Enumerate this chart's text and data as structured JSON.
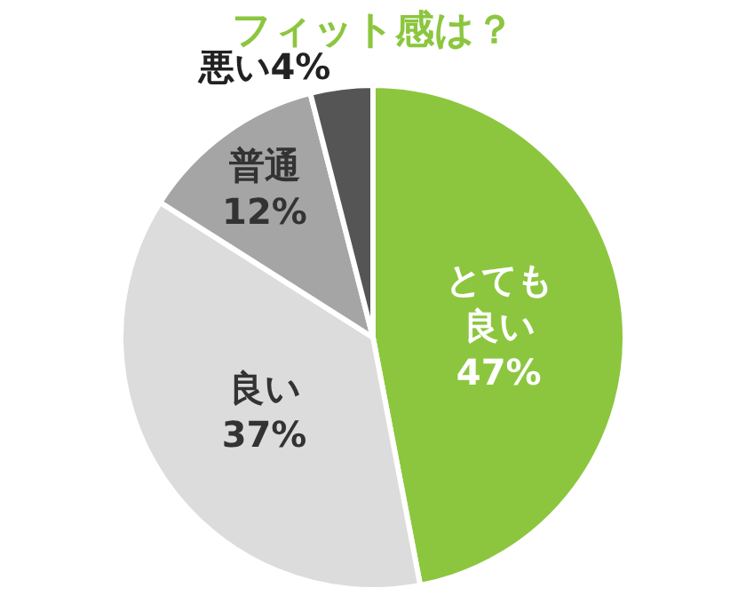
{
  "chart_data": {
    "type": "pie",
    "title": "フィット感は？",
    "categories": [
      "とても良い",
      "良い",
      "普通",
      "悪い"
    ],
    "values": [
      47,
      37,
      12,
      4
    ],
    "value_labels": [
      "47%",
      "37%",
      "12%",
      "4%"
    ],
    "colors": [
      "#8cc63f",
      "#dcdcdc",
      "#a5a5a5",
      "#555555"
    ],
    "legend": false
  }
}
